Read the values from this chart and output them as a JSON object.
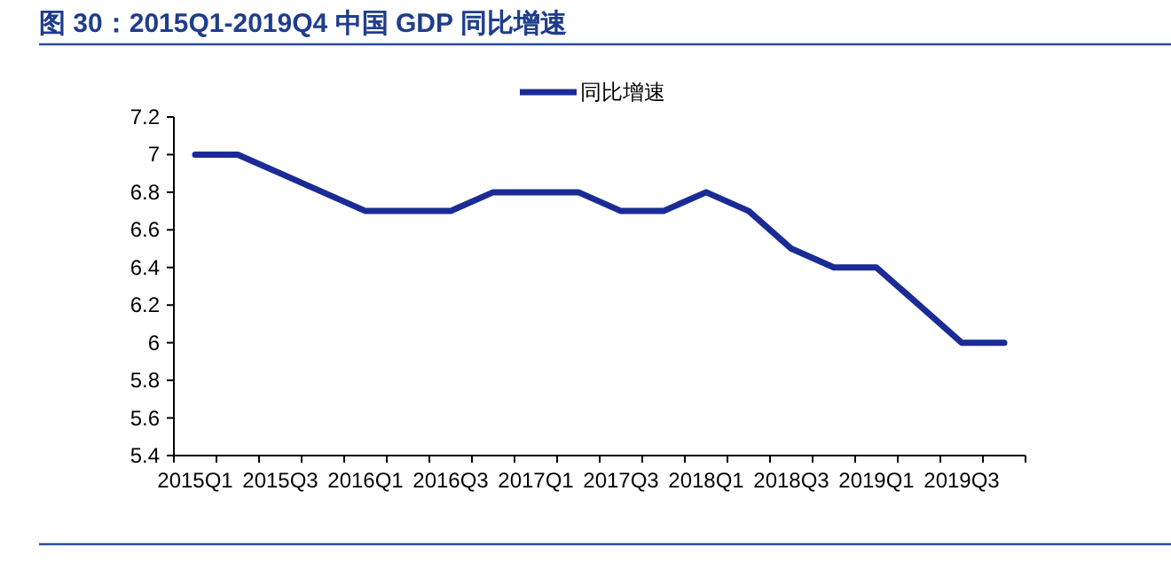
{
  "chart_data": {
    "type": "line",
    "title": "图 30：2015Q1-2019Q4 中国 GDP 同比增速",
    "categories": [
      "2015Q1",
      null,
      "2015Q3",
      null,
      "2016Q1",
      null,
      "2016Q3",
      null,
      "2017Q1",
      null,
      "2017Q3",
      null,
      "2018Q1",
      null,
      "2018Q3",
      null,
      "2019Q1",
      null,
      "2019Q3",
      null
    ],
    "series": [
      {
        "name": "同比增速",
        "color": "#1b2b96",
        "values": [
          7.0,
          7.0,
          6.9,
          6.8,
          6.7,
          6.7,
          6.7,
          6.8,
          6.8,
          6.8,
          6.7,
          6.7,
          6.8,
          6.7,
          6.5,
          6.4,
          6.4,
          6.2,
          6.0,
          6.0
        ]
      }
    ],
    "ylim": [
      5.4,
      7.2
    ],
    "yticks": [
      5.4,
      5.6,
      5.8,
      6,
      6.2,
      6.4,
      6.6,
      6.8,
      7,
      7.2
    ],
    "legend": "top",
    "grid": false,
    "marker": "none",
    "line_style": "solid"
  }
}
